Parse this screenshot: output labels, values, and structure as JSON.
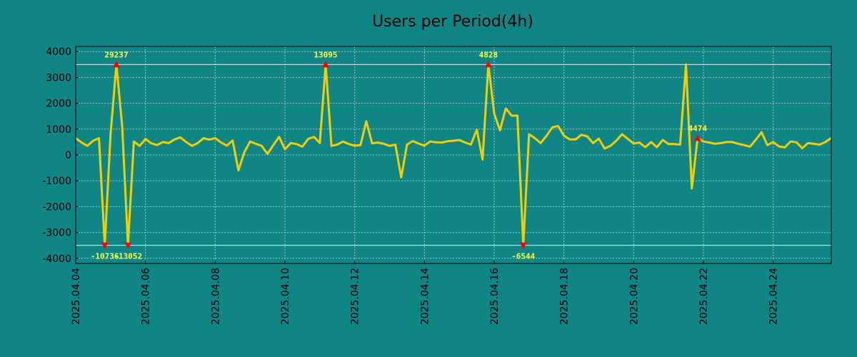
{
  "chart_data": {
    "type": "line",
    "title": "Users per Period(4h)",
    "xlabel": "",
    "ylabel": "",
    "ylim": [
      -4200,
      4200
    ],
    "x_tick_labels": [
      "2025.04.04",
      "2025.04.06",
      "2025.04.08",
      "2025.04.10",
      "2025.04.12",
      "2025.04.14",
      "2025.04.16",
      "2025.04.18",
      "2025.04.20",
      "2025.04.22",
      "2025.04.24"
    ],
    "y_tick_labels": [
      "4000",
      "3000",
      "2000",
      "1000",
      "0",
      "-1000",
      "-2000",
      "-3000",
      "-4000"
    ],
    "y_ticks": [
      4000,
      3000,
      2000,
      1000,
      0,
      -1000,
      -2000,
      -3000,
      -4000
    ],
    "clip_lines": [
      3500,
      -3500
    ],
    "grid": true,
    "x_start": "2025.04.04 00:00",
    "step_hours": 4,
    "values": [
      650,
      480,
      350,
      550,
      650,
      -3500,
      800,
      3500,
      1100,
      -3500,
      520,
      350,
      620,
      450,
      380,
      500,
      460,
      600,
      680,
      500,
      350,
      460,
      650,
      590,
      650,
      480,
      360,
      560,
      -600,
      100,
      520,
      430,
      350,
      40,
      380,
      700,
      220,
      460,
      420,
      320,
      620,
      700,
      460,
      3500,
      350,
      400,
      520,
      420,
      360,
      380,
      1300,
      450,
      480,
      430,
      350,
      400,
      -870,
      400,
      540,
      440,
      360,
      520,
      490,
      480,
      530,
      550,
      580,
      480,
      400,
      980,
      -180,
      3500,
      1600,
      950,
      1800,
      1520,
      1520,
      -3500,
      800,
      650,
      460,
      740,
      1070,
      1120,
      750,
      600,
      600,
      780,
      720,
      460,
      630,
      250,
      350,
      550,
      800,
      620,
      440,
      480,
      300,
      500,
      300,
      580,
      420,
      420,
      400,
      3500,
      -1300,
      650,
      520,
      480,
      430,
      460,
      500,
      500,
      430,
      380,
      320,
      580,
      880,
      380,
      500,
      330,
      290,
      520,
      490,
      260,
      460,
      430,
      400,
      500,
      660
    ],
    "peak_labels": [
      {
        "index": 7,
        "text": "29237",
        "dir": "up"
      },
      {
        "index": 5,
        "text": "-10736",
        "dir": "down"
      },
      {
        "index": 9,
        "text": "-13052",
        "dir": "down"
      },
      {
        "index": 43,
        "text": "13095",
        "dir": "up"
      },
      {
        "index": 71,
        "text": "4828",
        "dir": "up"
      },
      {
        "index": 77,
        "text": "-6544",
        "dir": "down"
      },
      {
        "index": 107,
        "text": "4474",
        "dir": "up"
      }
    ],
    "colors": {
      "background": "#108585",
      "line": "#f0d000",
      "marker": "#ff0000",
      "label": "#ffff33",
      "clip_line": "#e8e8e8",
      "grid": "#a0c8c8"
    }
  }
}
